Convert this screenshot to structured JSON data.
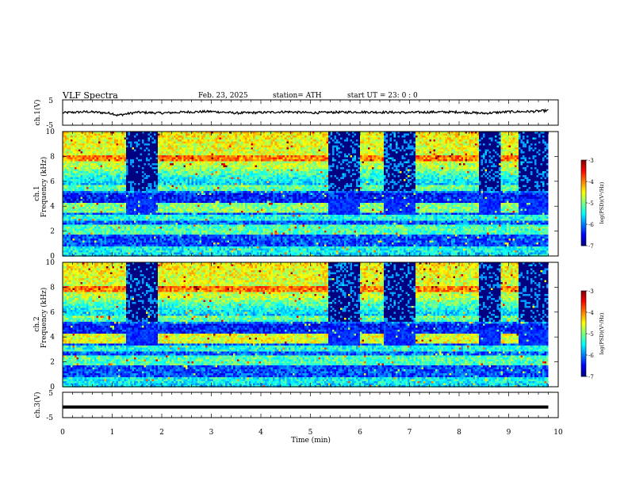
{
  "header": {
    "title": "VLF  Spectra",
    "date": "Feb. 23, 2025",
    "station": "station= ATH",
    "start": "start  UT  =    23: 0   : 0"
  },
  "chart_data": [
    {
      "type": "line",
      "name": "ch1-waveform",
      "ylabel": "ch.1(V)",
      "ylim": [
        -5,
        5
      ],
      "yticks": [
        "5",
        "-5"
      ],
      "xlim": [
        0,
        10
      ],
      "x": [
        0,
        0.5,
        1.0,
        1.1,
        1.5,
        2.0,
        2.5,
        3.0,
        3.5,
        4.0,
        4.5,
        5.0,
        5.5,
        6.0,
        6.5,
        7.0,
        7.5,
        8.0,
        8.5,
        9.0,
        9.5,
        9.8
      ],
      "values": [
        -0.1,
        0.3,
        -0.3,
        -1.1,
        0.1,
        -0.2,
        0.2,
        0.4,
        -0.2,
        0.0,
        0.3,
        -0.1,
        0.1,
        0.2,
        0.1,
        0.0,
        0.2,
        0.2,
        -0.3,
        0.3,
        0.4,
        0.8
      ]
    },
    {
      "type": "heatmap",
      "name": "ch1-spectrogram",
      "ylabel": "ch.1\nFrequency (kHz)",
      "ylim": [
        0,
        10
      ],
      "yticks": [
        "0",
        "2",
        "4",
        "6",
        "8",
        "10"
      ],
      "xlim": [
        0,
        10
      ],
      "colorbar": {
        "label": "log(PSD)(V²/Hz)",
        "range": [
          -7,
          -3
        ],
        "ticks": [
          "-3",
          "-4",
          "-5",
          "-6",
          "-7"
        ]
      },
      "dark_intervals_min": [
        [
          1.3,
          1.9
        ],
        [
          5.35,
          6.0
        ],
        [
          6.5,
          7.1
        ],
        [
          8.4,
          8.85
        ],
        [
          9.2,
          9.8
        ]
      ]
    },
    {
      "type": "heatmap",
      "name": "ch2-spectrogram",
      "ylabel": "ch.2\nFrequency (kHz)",
      "ylim": [
        0,
        10
      ],
      "yticks": [
        "0",
        "2",
        "4",
        "6",
        "8",
        "10"
      ],
      "xlim": [
        0,
        10
      ],
      "colorbar": {
        "label": "log(PSD)(V²/Hz)",
        "range": [
          -7,
          -3
        ],
        "ticks": [
          "-3",
          "-4",
          "-5",
          "-6",
          "-7"
        ]
      },
      "dark_intervals_min": [
        [
          1.3,
          1.9
        ],
        [
          5.35,
          6.0
        ],
        [
          6.5,
          7.1
        ],
        [
          8.4,
          8.85
        ],
        [
          9.2,
          9.8
        ]
      ]
    },
    {
      "type": "line",
      "name": "ch3-waveform",
      "ylabel": "ch.3(V)",
      "ylim": [
        -5,
        5
      ],
      "yticks": [
        "5",
        "-5"
      ],
      "xlim": [
        0,
        10
      ],
      "x": [
        0,
        9.8
      ],
      "values": [
        -0.8,
        -0.8
      ]
    }
  ],
  "xaxis": {
    "label": "Time  (min)",
    "ticks": [
      "0",
      "1",
      "2",
      "3",
      "4",
      "5",
      "6",
      "7",
      "8",
      "9",
      "10"
    ]
  },
  "colors": {
    "dark": "#000040",
    "line": "#000000"
  }
}
